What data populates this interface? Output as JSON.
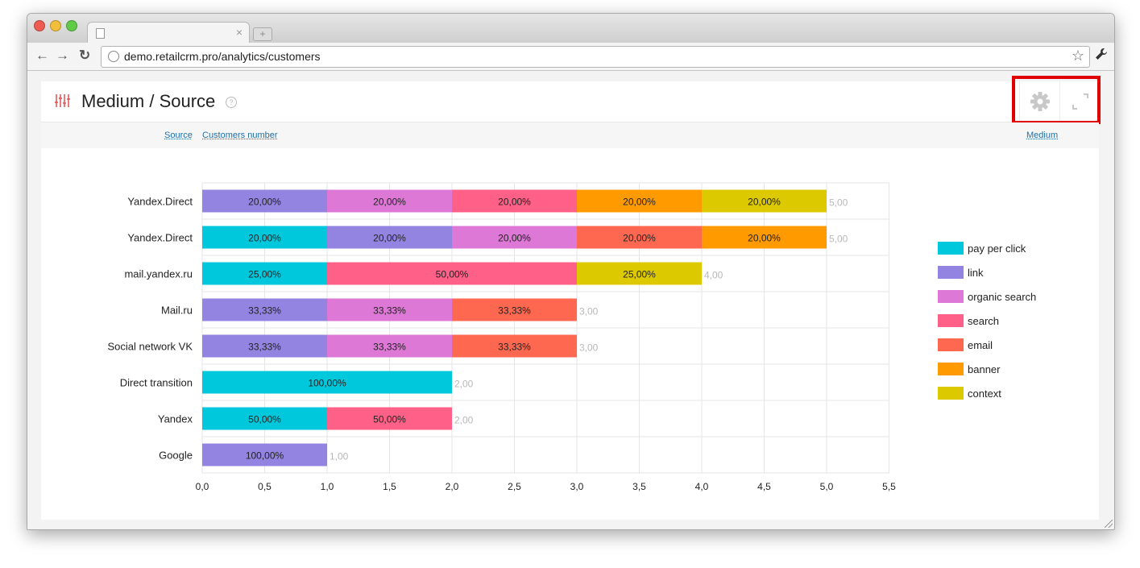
{
  "browser": {
    "url": "demo.retailcrm.pro/analytics/customers",
    "tab_close": "×",
    "new_tab": "+"
  },
  "panel": {
    "title": "Medium / Source",
    "help": "?",
    "filters": {
      "source": "Source",
      "customers_number": "Customers number",
      "medium": "Medium"
    }
  },
  "colors": {
    "pay per click": "#00c8dc",
    "link": "#9284e0",
    "organic search": "#de78d6",
    "search": "#ff6087",
    "email": "#ff6850",
    "banner": "#ff9a00",
    "context": "#dcc900",
    "highlight": "#e00000"
  },
  "chart_data": {
    "type": "bar",
    "orientation": "horizontal",
    "stacked": true,
    "categories": [
      "Yandex.Direct",
      "Yandex.Direct",
      "mail.yandex.ru",
      "Mail.ru",
      "Social network VK",
      "Direct transition",
      "Yandex",
      "Google"
    ],
    "legend": [
      "pay per click",
      "link",
      "organic search",
      "search",
      "email",
      "banner",
      "context"
    ],
    "legend_position": "right",
    "xlim": [
      0,
      5.5
    ],
    "xticks": [
      "0,0",
      "0,5",
      "1,0",
      "1,5",
      "2,0",
      "2,5",
      "3,0",
      "3,5",
      "4,0",
      "4,5",
      "5,0",
      "5,5"
    ],
    "grid": true,
    "rows": [
      {
        "segments": [
          {
            "series": "link",
            "value": 1,
            "label": "20,00%"
          },
          {
            "series": "organic search",
            "value": 1,
            "label": "20,00%"
          },
          {
            "series": "search",
            "value": 1,
            "label": "20,00%"
          },
          {
            "series": "banner",
            "value": 1,
            "label": "20,00%"
          },
          {
            "series": "context",
            "value": 1,
            "label": "20,00%"
          }
        ],
        "total": 5,
        "total_label": "5,00"
      },
      {
        "segments": [
          {
            "series": "pay per click",
            "value": 1,
            "label": "20,00%"
          },
          {
            "series": "link",
            "value": 1,
            "label": "20,00%"
          },
          {
            "series": "organic search",
            "value": 1,
            "label": "20,00%"
          },
          {
            "series": "email",
            "value": 1,
            "label": "20,00%"
          },
          {
            "series": "banner",
            "value": 1,
            "label": "20,00%"
          }
        ],
        "total": 5,
        "total_label": "5,00"
      },
      {
        "segments": [
          {
            "series": "pay per click",
            "value": 1,
            "label": "25,00%"
          },
          {
            "series": "search",
            "value": 2,
            "label": "50,00%"
          },
          {
            "series": "context",
            "value": 1,
            "label": "25,00%"
          }
        ],
        "total": 4,
        "total_label": "4,00"
      },
      {
        "segments": [
          {
            "series": "link",
            "value": 1,
            "label": "33,33%"
          },
          {
            "series": "organic search",
            "value": 1,
            "label": "33,33%"
          },
          {
            "series": "email",
            "value": 1,
            "label": "33,33%"
          }
        ],
        "total": 3,
        "total_label": "3,00"
      },
      {
        "segments": [
          {
            "series": "link",
            "value": 1,
            "label": "33,33%"
          },
          {
            "series": "organic search",
            "value": 1,
            "label": "33,33%"
          },
          {
            "series": "email",
            "value": 1,
            "label": "33,33%"
          }
        ],
        "total": 3,
        "total_label": "3,00"
      },
      {
        "segments": [
          {
            "series": "pay per click",
            "value": 2,
            "label": "100,00%"
          }
        ],
        "total": 2,
        "total_label": "2,00"
      },
      {
        "segments": [
          {
            "series": "pay per click",
            "value": 1,
            "label": "50,00%"
          },
          {
            "series": "search",
            "value": 1,
            "label": "50,00%"
          }
        ],
        "total": 2,
        "total_label": "2,00"
      },
      {
        "segments": [
          {
            "series": "link",
            "value": 1,
            "label": "100,00%"
          }
        ],
        "total": 1,
        "total_label": "1,00"
      }
    ]
  }
}
